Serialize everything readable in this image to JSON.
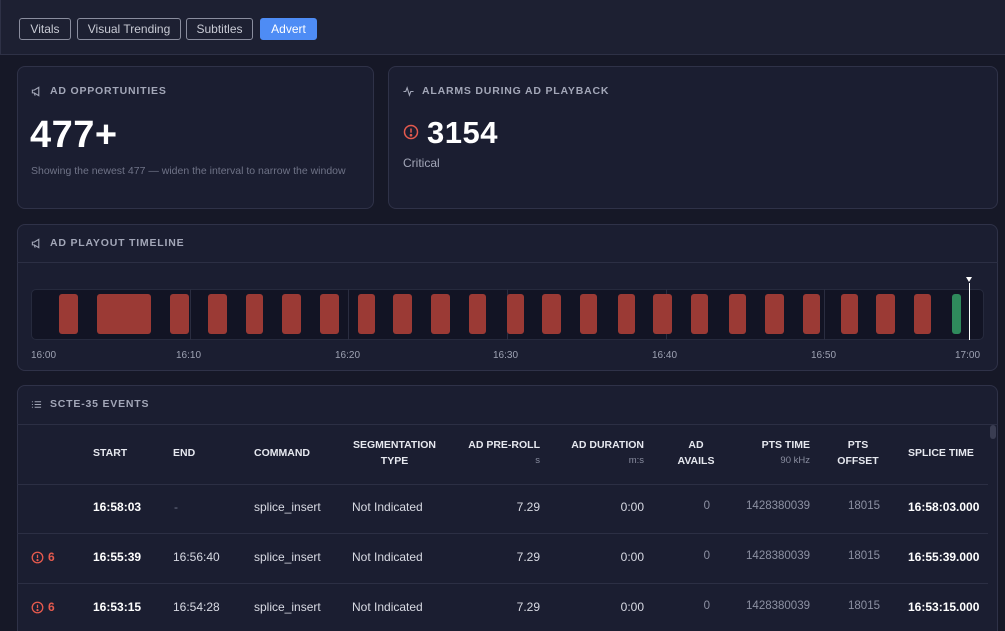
{
  "tabs": [
    {
      "label": "Vitals",
      "active": false
    },
    {
      "label": "Visual Trending",
      "active": false
    },
    {
      "label": "Subtitles",
      "active": false
    },
    {
      "label": "Advert",
      "active": true
    }
  ],
  "ad_opportunities": {
    "title": "AD OPPORTUNITIES",
    "value": "477+",
    "note": "Showing the newest 477 — widen the interval to narrow the window"
  },
  "alarms": {
    "title": "ALARMS DURING AD PLAYBACK",
    "value": "3154",
    "severity": "Critical"
  },
  "timeline": {
    "title": "AD PLAYOUT TIMELINE",
    "ticks": [
      "16:00",
      "16:10",
      "16:20",
      "16:30",
      "16:40",
      "16:50",
      "17:00"
    ]
  },
  "events": {
    "title": "SCTE-35 EVENTS",
    "columns": [
      {
        "label": "START",
        "unit": ""
      },
      {
        "label": "END",
        "unit": ""
      },
      {
        "label": "COMMAND",
        "unit": ""
      },
      {
        "label": "SEGMENTATION TYPE",
        "unit": ""
      },
      {
        "label": "AD PRE-ROLL",
        "unit": "s"
      },
      {
        "label": "AD DURATION",
        "unit": "m:s"
      },
      {
        "label": "AD AVAILS",
        "unit": ""
      },
      {
        "label": "PTS TIME",
        "unit": "90 kHz"
      },
      {
        "label": "PTS OFFSET",
        "unit": ""
      },
      {
        "label": "SPLICE TIME",
        "unit": ""
      }
    ],
    "rows": [
      {
        "alarms": "",
        "start": "16:58:03",
        "end": "-",
        "command": "splice_insert",
        "segmentation": "Not Indicated",
        "preroll": "7.29",
        "duration": "0:00",
        "avails": "0",
        "pts_time": "1428380039",
        "pts_offset": "18015",
        "splice_time": "16:58:03.000"
      },
      {
        "alarms": "6",
        "start": "16:55:39",
        "end": "16:56:40",
        "command": "splice_insert",
        "segmentation": "Not Indicated",
        "preroll": "7.29",
        "duration": "0:00",
        "avails": "0",
        "pts_time": "1428380039",
        "pts_offset": "18015",
        "splice_time": "16:55:39.000"
      },
      {
        "alarms": "6",
        "start": "16:53:15",
        "end": "16:54:28",
        "command": "splice_insert",
        "segmentation": "Not Indicated",
        "preroll": "7.29",
        "duration": "0:00",
        "avails": "0",
        "pts_time": "1428380039",
        "pts_offset": "18015",
        "splice_time": "16:53:15.000"
      }
    ]
  },
  "colors": {
    "accent": "#4e8cf5",
    "ad_segment": "#9b3a35",
    "ok_segment": "#2f8a5c",
    "alarm": "#e55a4e"
  }
}
